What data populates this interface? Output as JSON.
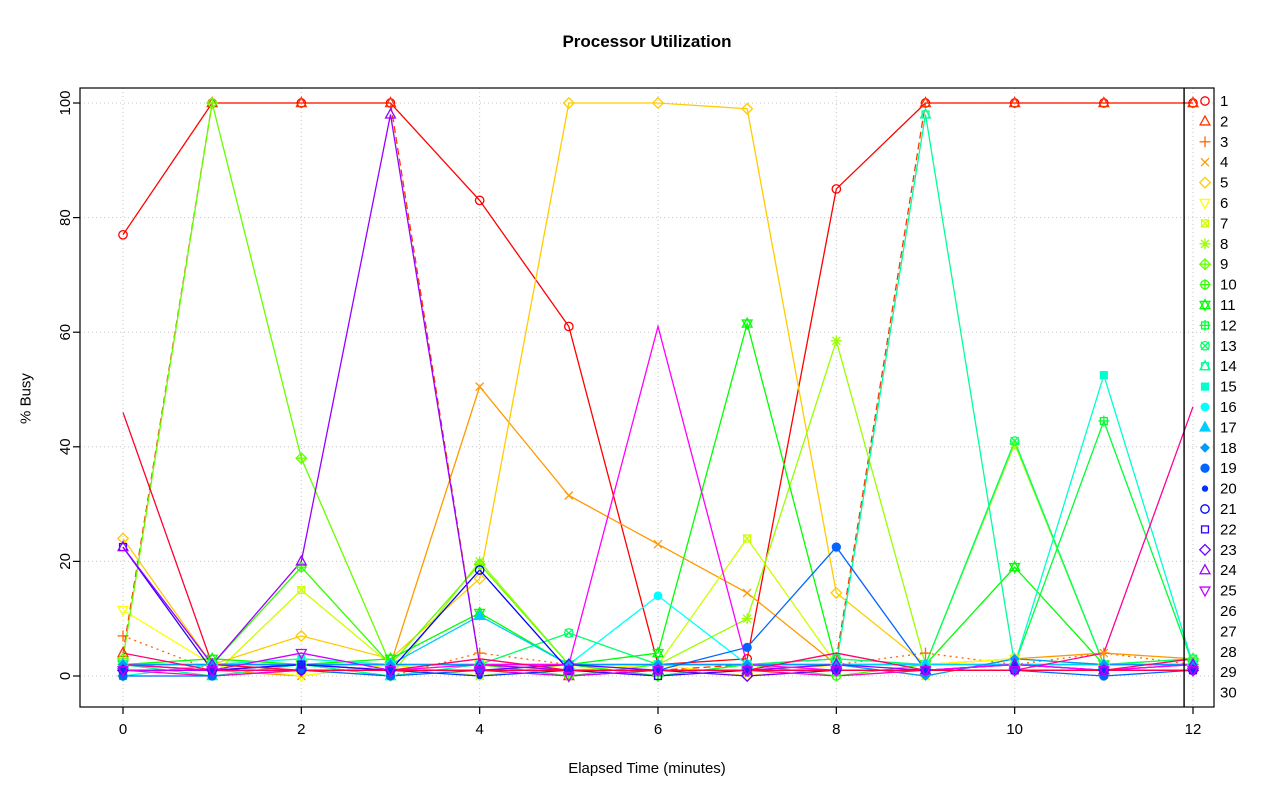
{
  "chart_data": {
    "type": "line",
    "title": "Processor Utilization",
    "xlabel": "Elapsed Time (minutes)",
    "ylabel": "% Busy",
    "x": [
      0,
      1,
      2,
      3,
      4,
      5,
      6,
      7,
      8,
      9,
      10,
      11,
      12
    ],
    "xticks": [
      0,
      2,
      4,
      6,
      8,
      10,
      12
    ],
    "yticks": [
      0,
      20,
      40,
      60,
      80,
      100
    ],
    "xlim": [
      0,
      12
    ],
    "ylim": [
      0,
      100
    ],
    "grid": true,
    "grid_color": "#c6c6c6",
    "legend_position": "right",
    "marker_line_x": 11.9,
    "series": [
      {
        "name": "1",
        "color": "#FF0000",
        "pch": 1,
        "dash": "",
        "values": [
          77,
          100,
          100,
          100,
          83,
          61,
          2,
          3,
          85,
          100,
          100,
          100,
          100
        ]
      },
      {
        "name": "2",
        "color": "#FF3300",
        "pch": 2,
        "dash": "7,4",
        "values": [
          4,
          100,
          100,
          100,
          2,
          0,
          1,
          2,
          3,
          100,
          100,
          100,
          100
        ]
      },
      {
        "name": "3",
        "color": "#FF6600",
        "pch": 3,
        "dash": "2,4",
        "values": [
          7,
          1,
          2,
          0,
          4,
          2,
          0,
          2,
          2,
          4,
          2,
          4,
          2
        ]
      },
      {
        "name": "4",
        "color": "#FF9900",
        "pch": 4,
        "dash": "",
        "values": [
          2,
          1,
          0,
          2,
          50.5,
          31.5,
          23,
          14.5,
          2,
          2,
          3,
          4,
          3
        ]
      },
      {
        "name": "5",
        "color": "#FFCC00",
        "pch": 5,
        "dash": "",
        "values": [
          24,
          2,
          7,
          3,
          17,
          100,
          100,
          99,
          14.5,
          2,
          3,
          2,
          2
        ]
      },
      {
        "name": "6",
        "color": "#FFFF00",
        "pch": 6,
        "dash": "",
        "values": [
          11.5,
          2,
          0,
          2,
          2,
          1,
          2,
          0,
          2,
          2,
          3,
          2,
          2
        ]
      },
      {
        "name": "7",
        "color": "#CCFF00",
        "pch": 7,
        "dash": "",
        "values": [
          2,
          0,
          15,
          2,
          0,
          2,
          2,
          24,
          2,
          0,
          3,
          2,
          2
        ]
      },
      {
        "name": "8",
        "color": "#99FF00",
        "pch": 8,
        "dash": "",
        "values": [
          2,
          2,
          2,
          0,
          20,
          2,
          2,
          10,
          58.5,
          2,
          40.5,
          2,
          2
        ]
      },
      {
        "name": "9",
        "color": "#66FF00",
        "pch": 9,
        "dash": "",
        "values": [
          3,
          100,
          38,
          2,
          19.5,
          2,
          0,
          2,
          2,
          2,
          2,
          2,
          3
        ]
      },
      {
        "name": "10",
        "color": "#33FF00",
        "pch": 10,
        "dash": "",
        "values": [
          2,
          2,
          19,
          2,
          2,
          0,
          2,
          2,
          0,
          2,
          2,
          2,
          2
        ]
      },
      {
        "name": "11",
        "color": "#00FF00",
        "pch": 11,
        "dash": "",
        "values": [
          2,
          3,
          2,
          3,
          11,
          2,
          4,
          61.5,
          2,
          2,
          19,
          2,
          2
        ]
      },
      {
        "name": "12",
        "color": "#00FF33",
        "pch": 12,
        "dash": "",
        "values": [
          0,
          2,
          2,
          2,
          2,
          2,
          0,
          2,
          2,
          2,
          2,
          44.5,
          2
        ]
      },
      {
        "name": "13",
        "color": "#00FF66",
        "pch": 13,
        "dash": "",
        "values": [
          2,
          2,
          2,
          2,
          2,
          7.5,
          2,
          2,
          3,
          2,
          41,
          2,
          3
        ]
      },
      {
        "name": "14",
        "color": "#00FF99",
        "pch": 14,
        "dash": "",
        "values": [
          2,
          0,
          2,
          0,
          2,
          2,
          2,
          2,
          2,
          98,
          2,
          2,
          2
        ]
      },
      {
        "name": "15",
        "color": "#00FFCC",
        "pch": 15,
        "dash": "",
        "values": [
          2,
          2,
          3,
          2,
          2,
          2,
          2,
          2,
          2,
          2,
          2,
          52.5,
          2
        ]
      },
      {
        "name": "16",
        "color": "#00FFFF",
        "pch": 16,
        "dash": "",
        "values": [
          0,
          2,
          2,
          2,
          2,
          2,
          14,
          2,
          2,
          2,
          2,
          2,
          2
        ]
      },
      {
        "name": "17",
        "color": "#00CCFF",
        "pch": 17,
        "dash": "",
        "values": [
          2,
          2,
          2,
          2,
          10.5,
          2,
          2,
          2,
          2,
          2,
          2,
          2,
          2
        ]
      },
      {
        "name": "18",
        "color": "#0099FF",
        "pch": 18,
        "dash": "",
        "values": [
          2,
          2,
          2,
          2,
          2,
          2,
          2,
          2,
          2,
          0,
          3,
          2,
          2
        ]
      },
      {
        "name": "19",
        "color": "#0066FF",
        "pch": 19,
        "dash": "",
        "values": [
          0,
          0,
          1,
          0,
          1,
          1,
          1,
          5,
          22.5,
          1,
          1,
          0,
          1
        ]
      },
      {
        "name": "20",
        "color": "#0033FF",
        "pch": 20,
        "dash": "",
        "values": [
          1,
          1,
          2,
          1,
          0,
          1,
          1,
          1,
          1,
          1,
          2,
          1,
          1
        ]
      },
      {
        "name": "21",
        "color": "#0000FF",
        "pch": 21,
        "dash": "",
        "values": [
          1,
          1,
          1,
          1,
          18.5,
          1,
          1,
          1,
          1,
          1,
          1,
          1,
          1
        ]
      },
      {
        "name": "22",
        "color": "#3300FF",
        "pch": 22,
        "dash": "",
        "values": [
          22.5,
          1,
          2,
          1,
          1,
          1,
          0,
          1,
          1,
          1,
          1,
          1,
          1
        ]
      },
      {
        "name": "23",
        "color": "#6600FF",
        "pch": 23,
        "dash": "",
        "values": [
          1,
          1,
          1,
          1,
          1,
          2,
          1,
          0,
          1,
          1,
          1,
          1,
          1
        ]
      },
      {
        "name": "24",
        "color": "#9900FF",
        "pch": 24,
        "dash": "",
        "values": [
          22.5,
          2,
          20,
          98,
          2,
          1,
          1,
          1,
          2,
          1,
          2,
          1,
          2
        ]
      },
      {
        "name": "25",
        "color": "#CC00FF",
        "pch": 25,
        "dash": "",
        "values": [
          1,
          1,
          4,
          1,
          1,
          0,
          1,
          1,
          1,
          1,
          1,
          1,
          1
        ]
      },
      {
        "name": "26",
        "color": "#FF00FF",
        "pch": 26,
        "dash": "",
        "values": [
          2,
          1,
          1,
          1,
          2,
          2,
          61,
          2,
          1,
          1,
          2,
          1,
          2
        ]
      },
      {
        "name": "27",
        "color": "#FF00CC",
        "pch": 27,
        "dash": "",
        "values": [
          1,
          0,
          1,
          1,
          1,
          1,
          1,
          1,
          0,
          1,
          1,
          1,
          1
        ]
      },
      {
        "name": "28",
        "color": "#FF0099",
        "pch": 28,
        "dash": "",
        "values": [
          2,
          1,
          1,
          1,
          1,
          1,
          1,
          1,
          1,
          1,
          1,
          4,
          47
        ]
      },
      {
        "name": "29",
        "color": "#FF0066",
        "pch": 29,
        "dash": "",
        "values": [
          4,
          1,
          1,
          1,
          3,
          1,
          1,
          1,
          4,
          1,
          1,
          1,
          3
        ]
      },
      {
        "name": "30",
        "color": "#FF0033",
        "pch": 30,
        "dash": "",
        "values": [
          46,
          2,
          1,
          1,
          1,
          1,
          1,
          1,
          1,
          1,
          1,
          1,
          1
        ]
      }
    ]
  }
}
